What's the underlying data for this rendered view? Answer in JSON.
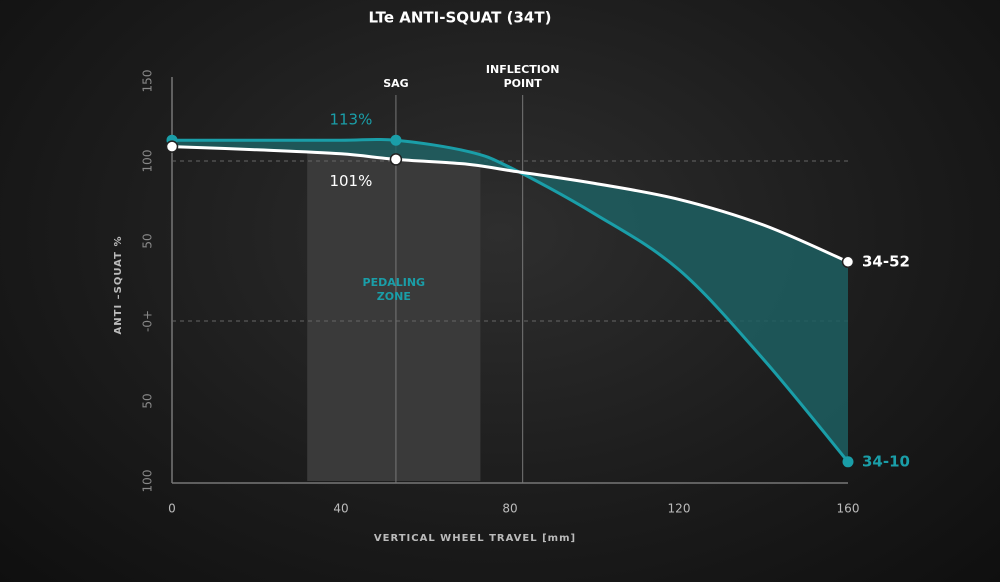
{
  "chart_data": {
    "type": "line",
    "title": "LTe ANTI-SQUAT (34T)",
    "x_label": "VERTICAL WHEEL TRAVEL [mm]",
    "y_label": "ANTI –SQUAT %",
    "x": [
      0,
      20,
      40,
      53,
      70,
      80,
      100,
      120,
      140,
      160
    ],
    "series": [
      {
        "name": "34-10",
        "color": "#1a9ea8",
        "values": [
          113,
          113,
          113,
          113,
          106,
          96,
          67,
          32,
          -24,
          -88
        ],
        "value_labels": [
          null,
          null,
          null,
          "113%",
          null,
          null,
          null,
          null,
          null,
          null
        ]
      },
      {
        "name": "34-52",
        "color": "#ffffff",
        "values": [
          109,
          107,
          104.5,
          101,
          98,
          94,
          86,
          76,
          60,
          37
        ],
        "value_labels": [
          null,
          null,
          null,
          "101%",
          null,
          null,
          null,
          null,
          null,
          null
        ]
      }
    ],
    "fill_between": "#1d5f62",
    "xlim": [
      0,
      160
    ],
    "xticks": [
      0,
      40,
      80,
      120,
      160
    ],
    "ylim": [
      -100,
      150
    ],
    "yticks": [
      {
        "value": -100,
        "label": "100"
      },
      {
        "value": -50,
        "label": "50"
      },
      {
        "value": 0,
        "label": "-0+"
      },
      50,
      100,
      150
    ],
    "dashed_lines": [
      100,
      0
    ],
    "markers": [
      {
        "label": "SAG",
        "x": 53
      },
      {
        "label": "INFLECTION POINT",
        "x": 83
      }
    ],
    "zone": {
      "label": "PEDALING ZONE",
      "x": [
        32,
        73
      ]
    }
  }
}
